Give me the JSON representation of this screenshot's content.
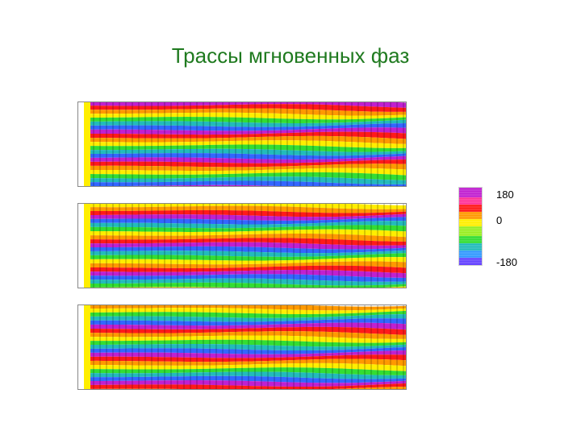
{
  "slide": {
    "title": "Трассы мгновенных фаз"
  },
  "panels": [
    {
      "name": "panel-1",
      "colors": [
        "#c020d0",
        "#ff1a1a",
        "#ff9900",
        "#ffee00",
        "#33dd33",
        "#22bbbb",
        "#3366ff"
      ]
    },
    {
      "name": "panel-2",
      "colors": [
        "#ffee00",
        "#ff9900",
        "#ff1a1a",
        "#c020d0",
        "#3366ff",
        "#22bbbb",
        "#33dd33"
      ]
    },
    {
      "name": "panel-3",
      "colors": [
        "#ff9900",
        "#ffee00",
        "#33dd33",
        "#22bbbb",
        "#3366ff",
        "#c020d0",
        "#ff1a1a"
      ]
    }
  ],
  "color_scale": {
    "top_label": "180",
    "mid_label": "0",
    "bottom_label": "-180",
    "colors": [
      "#c020d0",
      "#ff3399",
      "#ff1a1a",
      "#ff9900",
      "#ffee00",
      "#99ee22",
      "#33dd33",
      "#22bbbb",
      "#3399ff",
      "#6644ff"
    ]
  }
}
